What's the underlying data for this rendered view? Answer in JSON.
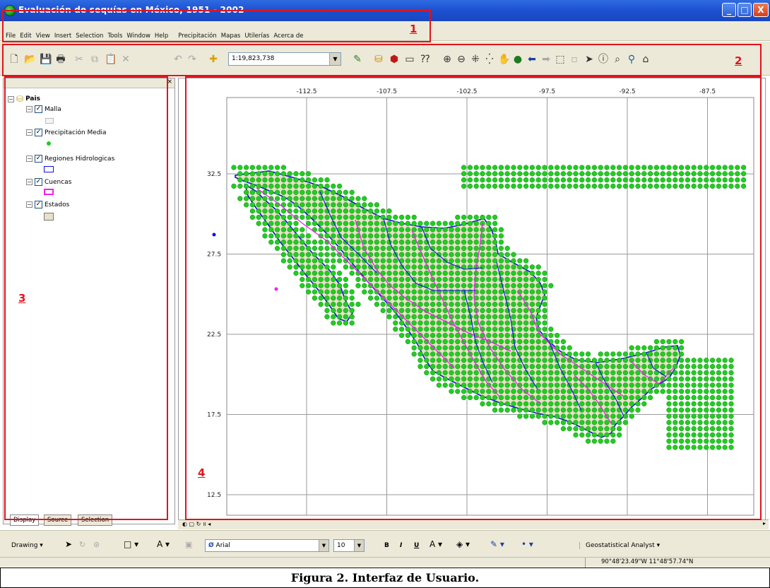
{
  "window": {
    "title": "Evaluación de sequías en México, 1951 - 2002",
    "buttons": [
      "_",
      "□",
      "X"
    ]
  },
  "menu": [
    "File",
    "Edit",
    "View",
    "Insert",
    "Selection",
    "Tools",
    "Window",
    "Help",
    "Precipitación",
    "Mapas",
    "Utilerías",
    "Acerca de"
  ],
  "toolbar": {
    "scale": "1:19,823,738",
    "icons": [
      "new-icon",
      "open-icon",
      "save-icon",
      "print-icon",
      "cut-icon",
      "copy-icon",
      "paste-icon",
      "delete-icon",
      "undo-icon",
      "redo-icon",
      "add-data-icon",
      "editor-icon",
      "arccatalog-icon",
      "arctoolbox-icon",
      "window-icon",
      "whats-this-icon",
      "zoom-in-icon",
      "zoom-out-icon",
      "fixed-zoom-in-icon",
      "fixed-zoom-out-icon",
      "pan-icon",
      "full-extent-icon",
      "back-icon",
      "forward-icon",
      "select-features-icon",
      "clear-selection-icon",
      "select-elements-icon",
      "identify-icon",
      "find-icon",
      "measure-icon",
      "hyperlink-icon"
    ]
  },
  "toc": {
    "root": "Pais",
    "layers": [
      {
        "name": "Malla",
        "symbol": "grey-box"
      },
      {
        "name": "Precipitación Media",
        "symbol": "green-dot"
      },
      {
        "name": "Regiones Hidrologicas",
        "symbol": "blue-box"
      },
      {
        "name": "Cuencas",
        "symbol": "magenta-box"
      },
      {
        "name": "Estados",
        "symbol": "tan-box"
      }
    ],
    "tabs": [
      "Display",
      "Source",
      "Selection"
    ]
  },
  "map": {
    "x_ticks": [
      "-112.5",
      "-107.5",
      "-102.5",
      "-97.5",
      "-92.5",
      "-87.5"
    ],
    "y_ticks": [
      "32.5",
      "27.5",
      "22.5",
      "17.5",
      "12.5"
    ],
    "colors": {
      "points": "#22cc22",
      "regions": "#1010e0",
      "cuencas": "#ee22ee",
      "estados": "#e8e0c8"
    }
  },
  "drawing": {
    "label": "Drawing",
    "font": "Arial",
    "size": "10",
    "bold": "B",
    "italic": "I",
    "underline": "U",
    "geostat": "Geostatistical Analyst"
  },
  "status": {
    "coords": "90°48'23.49\"W  11°48'57.74\"N"
  },
  "caption": "Figura 2. Interfaz de Usuario.",
  "annotations": [
    "1",
    "2",
    "3",
    "4"
  ]
}
